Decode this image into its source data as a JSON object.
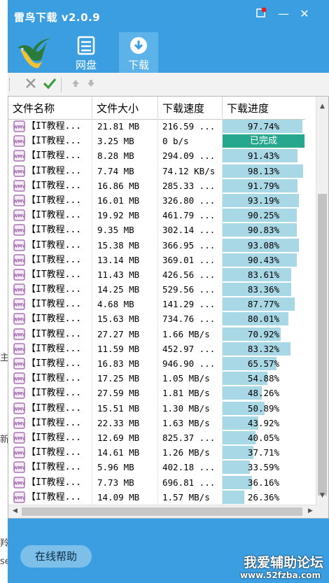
{
  "window": {
    "title": "雷鸟下载 v2.0.9"
  },
  "titlebar_buttons": {
    "skin": "skin-icon",
    "minimize": "—",
    "close": "✕"
  },
  "nav": {
    "tabs": [
      {
        "label": "网盘",
        "icon": "disk-icon",
        "active": false
      },
      {
        "label": "下载",
        "icon": "download-icon",
        "active": true
      }
    ]
  },
  "toolbar": {
    "items": [
      "delete-icon",
      "confirm-icon",
      "move-up-icon",
      "move-down-icon"
    ]
  },
  "table": {
    "columns": [
      "文件名称",
      "文件大小",
      "下载速度",
      "下载进度"
    ],
    "rows": [
      {
        "name": "【IT教程...",
        "size": "21.81 MB",
        "speed": "216.59 ...",
        "progress": 97.74,
        "progress_label": "97.74%"
      },
      {
        "name": "【IT教程...",
        "size": "3.25 MB",
        "speed": "0 b/s",
        "progress": 100,
        "progress_label": "已完成",
        "done": true
      },
      {
        "name": "【IT教程...",
        "size": "8.28 MB",
        "speed": "294.09 ...",
        "progress": 91.43,
        "progress_label": "91.43%"
      },
      {
        "name": "【IT教程...",
        "size": "7.74 MB",
        "speed": "74.12 KB/s",
        "progress": 98.13,
        "progress_label": "98.13%"
      },
      {
        "name": "【IT教程...",
        "size": "16.86 MB",
        "speed": "285.33 ...",
        "progress": 91.79,
        "progress_label": "91.79%"
      },
      {
        "name": "【IT教程...",
        "size": "16.01 MB",
        "speed": "326.80 ...",
        "progress": 93.19,
        "progress_label": "93.19%"
      },
      {
        "name": "【IT教程...",
        "size": "19.92 MB",
        "speed": "461.79 ...",
        "progress": 90.25,
        "progress_label": "90.25%"
      },
      {
        "name": "【IT教程...",
        "size": "9.35 MB",
        "speed": "302.14 ...",
        "progress": 90.83,
        "progress_label": "90.83%"
      },
      {
        "name": "【IT教程...",
        "size": "15.38 MB",
        "speed": "366.95 ...",
        "progress": 93.08,
        "progress_label": "93.08%"
      },
      {
        "name": "【IT教程...",
        "size": "13.14 MB",
        "speed": "369.01 ...",
        "progress": 90.43,
        "progress_label": "90.43%"
      },
      {
        "name": "【IT教程...",
        "size": "11.43 MB",
        "speed": "426.56 ...",
        "progress": 83.61,
        "progress_label": "83.61%"
      },
      {
        "name": "【IT教程...",
        "size": "14.25 MB",
        "speed": "529.56 ...",
        "progress": 83.36,
        "progress_label": "83.36%"
      },
      {
        "name": "【IT教程...",
        "size": "4.68 MB",
        "speed": "141.29 ...",
        "progress": 87.77,
        "progress_label": "87.77%"
      },
      {
        "name": "【IT教程...",
        "size": "15.63 MB",
        "speed": "734.76 ...",
        "progress": 80.01,
        "progress_label": "80.01%"
      },
      {
        "name": "【IT教程...",
        "size": "27.27 MB",
        "speed": "1.66 MB/s",
        "progress": 70.92,
        "progress_label": "70.92%"
      },
      {
        "name": "【IT教程...",
        "size": "11.59 MB",
        "speed": "452.97 ...",
        "progress": 83.32,
        "progress_label": "83.32%"
      },
      {
        "name": "【IT教程...",
        "size": "16.83 MB",
        "speed": "946.90 ...",
        "progress": 65.57,
        "progress_label": "65.57%"
      },
      {
        "name": "【IT教程...",
        "size": "17.25 MB",
        "speed": "1.05 MB/s",
        "progress": 54.88,
        "progress_label": "54.88%"
      },
      {
        "name": "【IT教程...",
        "size": "27.59 MB",
        "speed": "1.81 MB/s",
        "progress": 48.26,
        "progress_label": "48.26%"
      },
      {
        "name": "【IT教程...",
        "size": "15.51 MB",
        "speed": "1.30 MB/s",
        "progress": 50.89,
        "progress_label": "50.89%"
      },
      {
        "name": "【IT教程...",
        "size": "22.33 MB",
        "speed": "1.63 MB/s",
        "progress": 43.92,
        "progress_label": "43.92%"
      },
      {
        "name": "【IT教程...",
        "size": "12.69 MB",
        "speed": "825.37 ...",
        "progress": 40.05,
        "progress_label": "40.05%"
      },
      {
        "name": "【IT教程...",
        "size": "14.61 MB",
        "speed": "1.26 MB/s",
        "progress": 37.71,
        "progress_label": "37.71%"
      },
      {
        "name": "【IT教程...",
        "size": "5.96 MB",
        "speed": "402.18 ...",
        "progress": 33.59,
        "progress_label": "33.59%"
      },
      {
        "name": "【IT教程...",
        "size": "7.73 MB",
        "speed": "696.81 ...",
        "progress": 36.16,
        "progress_label": "36.16%"
      },
      {
        "name": "【IT教程...",
        "size": "14.09 MB",
        "speed": "1.57 MB/s",
        "progress": 26.36,
        "progress_label": "26.36%"
      }
    ]
  },
  "footer": {
    "help_button": "在线帮助",
    "watermark_title": "我爱辅助论坛",
    "watermark_url": "www.52fzba.com"
  },
  "colors": {
    "accent": "#3a9ee0",
    "progress_fill": "#a8d8e6",
    "done_fill": "#27a88e"
  }
}
